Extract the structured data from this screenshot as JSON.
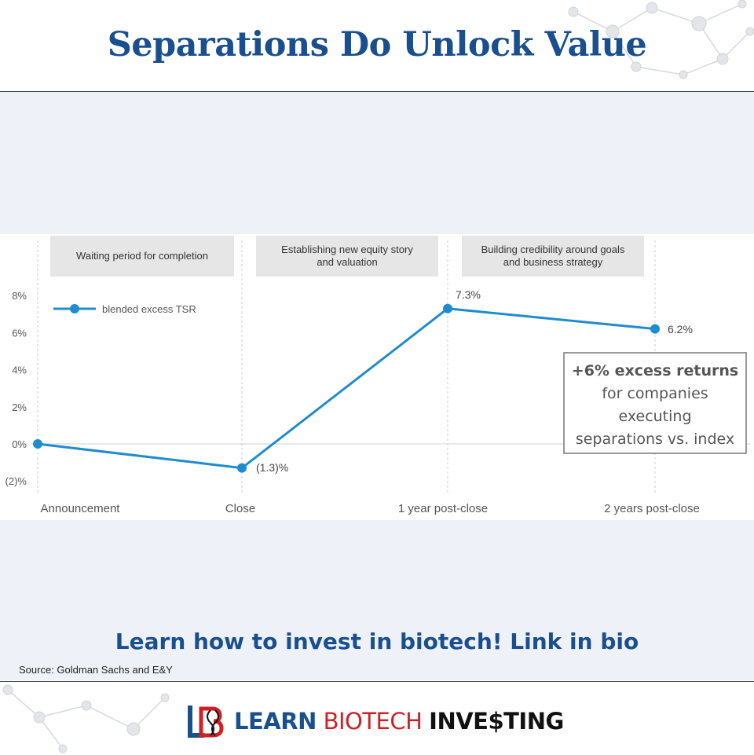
{
  "page": {
    "title": "Separations Do Unlock Value",
    "cta": "Learn how to invest in biotech! Link in bio",
    "source": "Source: Goldman Sachs and E&Y"
  },
  "logo": {
    "mark": "LB",
    "word1": "LEARN",
    "word2": "BIOTECH",
    "word3": "INVE$TING",
    "colors": {
      "blue": "#1a4f8f",
      "red": "#d02027",
      "black": "#111111"
    }
  },
  "chart_data": {
    "type": "line",
    "categories": [
      "Announcement",
      "Close",
      "1 year post-close",
      "2 years post-close"
    ],
    "series": [
      {
        "name": "blended excess TSR",
        "values": [
          0,
          -1.3,
          7.3,
          6.2
        ],
        "color": "#1f8ccf"
      }
    ],
    "data_labels": [
      "",
      "(1.3)%",
      "7.3%",
      "6.2%"
    ],
    "yticks": [
      8,
      6,
      4,
      2,
      0,
      -2
    ],
    "ytick_labels": [
      "8%",
      "6%",
      "4%",
      "2%",
      "0%",
      "(2)%"
    ],
    "ylim": [
      -2,
      8
    ],
    "phases": [
      {
        "lines": [
          "Waiting period for completion"
        ]
      },
      {
        "lines": [
          "Establishing new equity story",
          "and valuation"
        ]
      },
      {
        "lines": [
          "Building credibility around goals",
          "and business strategy"
        ]
      }
    ],
    "callout": {
      "lines": [
        "+6% excess returns",
        "for companies",
        "executing",
        "separations vs. index"
      ]
    },
    "legend_position": "top-left",
    "grid": "vertical dashed lines at categories; horizontal zero line"
  }
}
